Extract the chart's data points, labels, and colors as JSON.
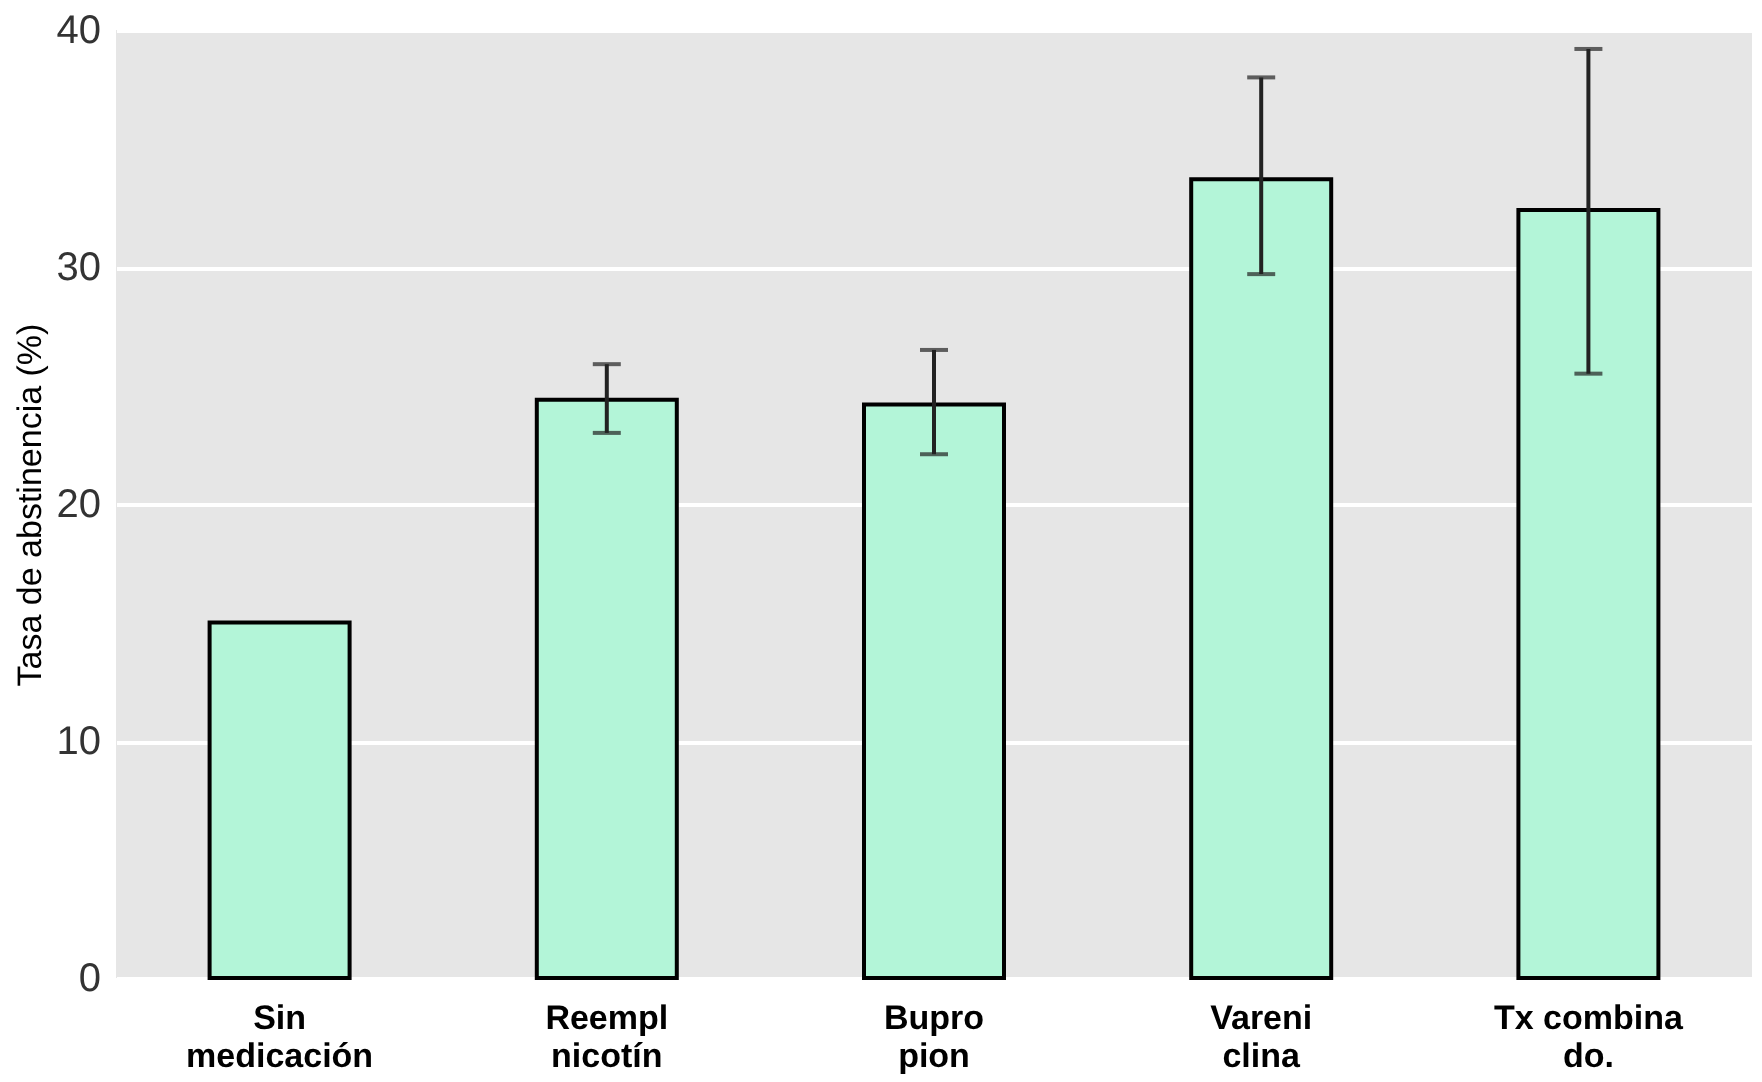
{
  "chart_data": {
    "type": "bar",
    "ylabel": "Tasa de abstinencia (%)",
    "categories": [
      "Sin\nmedicación",
      "Reempl\nnicotín",
      "Bupro\npion",
      "Vareni\nclina",
      "Tx combina\ndo."
    ],
    "values": [
      15.0,
      24.4,
      24.2,
      33.7,
      32.4
    ],
    "errors": [
      null,
      [
        23.0,
        25.9
      ],
      [
        22.1,
        26.5
      ],
      [
        29.7,
        38.0
      ],
      [
        25.5,
        39.2
      ]
    ],
    "color": "#b3f5d8",
    "ylim": [
      0,
      40
    ],
    "yticks": [
      0,
      10,
      20,
      30,
      40
    ],
    "grid": "y"
  }
}
